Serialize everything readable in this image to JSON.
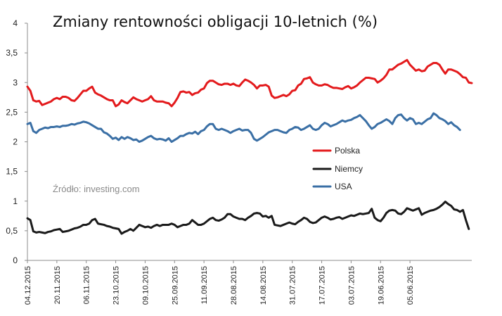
{
  "chart_data": {
    "type": "line",
    "title": "Zmiany rentowności obligacji 10-letnich (%)",
    "xlabel": "",
    "ylabel": "",
    "ylim": [
      0,
      4
    ],
    "yticks": [
      "0",
      "0,5",
      "1",
      "1,5",
      "2",
      "2,5",
      "3",
      "3,5",
      "4"
    ],
    "grid": false,
    "legend_position": "right",
    "annotation": "Źródło: investing.com",
    "x_tick_labels": [
      "04.12.2015",
      "20.11.2015",
      "06.11.2015",
      "23.10.2015",
      "09.10.2015",
      "25.09.2015",
      "11.09.2015",
      "28.08.2015",
      "14.08.2015",
      "31.07.2015",
      "17.07.2015",
      "03.07.2015",
      "19.06.2015",
      "05.06.2015"
    ],
    "x_note": "x = trading days counted from 04.12.2015 going back in time; tick labels every 10 days",
    "series": [
      {
        "name": "Polska",
        "color": "#e31a1c",
        "values": [
          2.93,
          2.86,
          2.7,
          2.68,
          2.69,
          2.62,
          2.64,
          2.66,
          2.68,
          2.72,
          2.74,
          2.72,
          2.76,
          2.76,
          2.74,
          2.7,
          2.69,
          2.74,
          2.8,
          2.86,
          2.86,
          2.9,
          2.93,
          2.83,
          2.8,
          2.78,
          2.75,
          2.72,
          2.7,
          2.7,
          2.6,
          2.63,
          2.7,
          2.67,
          2.65,
          2.7,
          2.75,
          2.72,
          2.7,
          2.68,
          2.7,
          2.72,
          2.77,
          2.7,
          2.68,
          2.68,
          2.68,
          2.66,
          2.65,
          2.6,
          2.66,
          2.74,
          2.84,
          2.85,
          2.83,
          2.84,
          2.79,
          2.82,
          2.83,
          2.88,
          2.9,
          2.99,
          3.03,
          3.03,
          3.0,
          2.97,
          2.96,
          2.98,
          2.98,
          2.96,
          2.98,
          2.95,
          2.94,
          3.0,
          3.05,
          3.03,
          3.0,
          2.96,
          2.9,
          2.95,
          2.95,
          2.96,
          2.93,
          2.78,
          2.74,
          2.75,
          2.77,
          2.79,
          2.77,
          2.8,
          2.86,
          2.87,
          2.95,
          2.98,
          3.06,
          3.07,
          3.09,
          3.0,
          2.97,
          2.95,
          2.95,
          2.97,
          2.96,
          2.93,
          2.91,
          2.91,
          2.9,
          2.89,
          2.92,
          2.94,
          2.9,
          2.92,
          2.95,
          3.0,
          3.04,
          3.08,
          3.08,
          3.07,
          3.06,
          3.0,
          3.03,
          3.07,
          3.13,
          3.22,
          3.22,
          3.26,
          3.3,
          3.32,
          3.35,
          3.38,
          3.3,
          3.25,
          3.2,
          3.22,
          3.19,
          3.2,
          3.27,
          3.3,
          3.33,
          3.33,
          3.3,
          3.22,
          3.15,
          3.22,
          3.22,
          3.2,
          3.18,
          3.14,
          3.09,
          3.08,
          3.0,
          2.99
        ]
      },
      {
        "name": "Niemcy",
        "color": "#1a1a1a",
        "values": [
          0.71,
          0.68,
          0.49,
          0.47,
          0.48,
          0.47,
          0.46,
          0.48,
          0.49,
          0.51,
          0.52,
          0.53,
          0.48,
          0.49,
          0.5,
          0.52,
          0.54,
          0.55,
          0.57,
          0.6,
          0.6,
          0.62,
          0.68,
          0.7,
          0.62,
          0.61,
          0.6,
          0.58,
          0.57,
          0.55,
          0.54,
          0.53,
          0.45,
          0.48,
          0.5,
          0.53,
          0.5,
          0.55,
          0.6,
          0.58,
          0.56,
          0.57,
          0.55,
          0.58,
          0.6,
          0.58,
          0.6,
          0.6,
          0.6,
          0.62,
          0.6,
          0.56,
          0.58,
          0.6,
          0.6,
          0.62,
          0.68,
          0.64,
          0.6,
          0.6,
          0.62,
          0.66,
          0.7,
          0.72,
          0.68,
          0.67,
          0.69,
          0.72,
          0.78,
          0.78,
          0.74,
          0.72,
          0.7,
          0.7,
          0.68,
          0.72,
          0.75,
          0.79,
          0.8,
          0.79,
          0.74,
          0.75,
          0.72,
          0.75,
          0.6,
          0.59,
          0.58,
          0.6,
          0.62,
          0.64,
          0.62,
          0.61,
          0.65,
          0.68,
          0.72,
          0.7,
          0.65,
          0.63,
          0.64,
          0.68,
          0.72,
          0.74,
          0.72,
          0.69,
          0.7,
          0.72,
          0.73,
          0.7,
          0.72,
          0.74,
          0.76,
          0.75,
          0.77,
          0.79,
          0.78,
          0.79,
          0.8,
          0.87,
          0.72,
          0.68,
          0.66,
          0.72,
          0.8,
          0.84,
          0.85,
          0.84,
          0.79,
          0.78,
          0.82,
          0.88,
          0.86,
          0.84,
          0.86,
          0.88,
          0.77,
          0.8,
          0.82,
          0.84,
          0.85,
          0.87,
          0.9,
          0.94,
          0.99,
          0.95,
          0.92,
          0.86,
          0.85,
          0.82,
          0.85,
          0.68,
          0.53
        ]
      },
      {
        "name": "USA",
        "color": "#3a6fa5",
        "values": [
          2.3,
          2.32,
          2.18,
          2.15,
          2.2,
          2.22,
          2.24,
          2.23,
          2.25,
          2.25,
          2.26,
          2.25,
          2.27,
          2.27,
          2.28,
          2.3,
          2.29,
          2.31,
          2.32,
          2.34,
          2.33,
          2.31,
          2.28,
          2.25,
          2.22,
          2.22,
          2.16,
          2.14,
          2.1,
          2.05,
          2.07,
          2.03,
          2.08,
          2.05,
          2.08,
          2.06,
          2.03,
          2.04,
          2.0,
          2.02,
          2.05,
          2.08,
          2.1,
          2.06,
          2.04,
          2.05,
          2.04,
          2.02,
          2.06,
          2.0,
          2.03,
          2.06,
          2.1,
          2.1,
          2.13,
          2.15,
          2.14,
          2.17,
          2.13,
          2.18,
          2.2,
          2.26,
          2.3,
          2.3,
          2.22,
          2.2,
          2.22,
          2.2,
          2.18,
          2.15,
          2.18,
          2.2,
          2.22,
          2.19,
          2.2,
          2.2,
          2.15,
          2.05,
          2.02,
          2.05,
          2.08,
          2.12,
          2.16,
          2.18,
          2.2,
          2.2,
          2.18,
          2.16,
          2.15,
          2.2,
          2.22,
          2.25,
          2.24,
          2.2,
          2.22,
          2.25,
          2.28,
          2.22,
          2.2,
          2.22,
          2.28,
          2.32,
          2.3,
          2.26,
          2.28,
          2.3,
          2.33,
          2.36,
          2.34,
          2.36,
          2.37,
          2.4,
          2.42,
          2.45,
          2.4,
          2.35,
          2.28,
          2.22,
          2.25,
          2.3,
          2.32,
          2.35,
          2.38,
          2.35,
          2.3,
          2.4,
          2.45,
          2.46,
          2.4,
          2.36,
          2.4,
          2.38,
          2.3,
          2.32,
          2.3,
          2.34,
          2.38,
          2.4,
          2.48,
          2.45,
          2.4,
          2.38,
          2.35,
          2.3,
          2.33,
          2.28,
          2.25,
          2.2
        ]
      }
    ]
  }
}
